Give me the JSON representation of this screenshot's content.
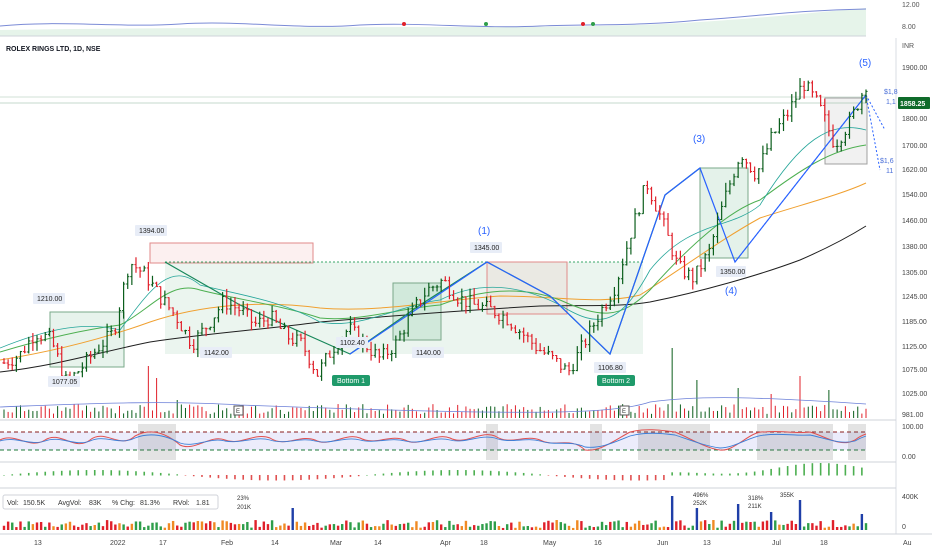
{
  "title": "ROLEX RINGS LTD, 1D, NSE",
  "currency": "INR",
  "colors": {
    "up": "#0b5e1c",
    "down": "#e0202a",
    "box_green": "#9ccfb0",
    "box_red": "#e8a0a0",
    "ma_black": "#1f1f1f",
    "ma_orange": "#f0a030",
    "ma_green": "#4caf50",
    "ma_teal": "#26a69a",
    "pattern_green": "#17875a",
    "pattern_blue": "#2962ff",
    "price_tag": "#0f6b2a"
  },
  "price_axis": {
    "ticks": [
      "1900.00",
      "1800.00",
      "1700.00",
      "1620.00",
      "1540.00",
      "1460.00",
      "1380.00",
      "1305.00",
      "1245.00",
      "1185.00",
      "1125.00",
      "1075.00",
      "1025.00",
      "981.00"
    ]
  },
  "top_strip": {
    "ticks": [
      "12.00",
      "8.00"
    ]
  },
  "stoch_axis": {
    "ticks": [
      "100.00",
      "0.00"
    ]
  },
  "volume_axis": {
    "ticks": [
      "400K",
      "0"
    ]
  },
  "x_axis": {
    "ticks": [
      "13",
      "2022",
      "17",
      "Feb",
      "14",
      "Mar",
      "14",
      "Apr",
      "18",
      "May",
      "16",
      "Jun",
      "13",
      "Jul",
      "18",
      "Au"
    ]
  },
  "price_tag": "1858.25",
  "partial_labels": [
    "$1,8",
    "1,1",
    "$1,6",
    "11"
  ],
  "annotations": {
    "price_labels": [
      "1210.00",
      "1077.05",
      "1394.00",
      "1142.00",
      "1102.40",
      "1140.00",
      "1345.00",
      "1106.80",
      "1350.00"
    ],
    "waves": [
      "(1)",
      "(3)",
      "(4)",
      "(5)"
    ],
    "badges": [
      "Bottom 1",
      "Bottom 2"
    ],
    "earnings": [
      "E",
      "E"
    ],
    "volume_spikes": [
      "23%",
      "201K",
      "496%",
      "252K",
      "318%",
      "211K",
      "355K"
    ]
  },
  "stats": {
    "vol_label": "Vol:",
    "vol": "150.5K",
    "avgvol_label": "AvgVol:",
    "avgvol": "83K",
    "chg_label": "% Chg:",
    "chg": "81.3%",
    "rvol_label": "RVol:",
    "rvol": "1.81"
  },
  "chart_data": {
    "type": "bar",
    "title": "ROLEX RINGS LTD, 1D, NSE",
    "x_labels": [
      "13",
      "2022",
      "17",
      "Feb",
      "14",
      "Mar",
      "14",
      "Apr",
      "18",
      "May",
      "16",
      "Jun",
      "13",
      "Jul",
      "18"
    ],
    "ylim": [
      981,
      1920
    ],
    "close_path": [
      1130,
      1150,
      1210,
      1190,
      1077,
      1120,
      1170,
      1210,
      1394,
      1360,
      1300,
      1250,
      1180,
      1230,
      1290,
      1270,
      1230,
      1250,
      1200,
      1180,
      1102,
      1170,
      1220,
      1180,
      1140,
      1180,
      1260,
      1320,
      1345,
      1300,
      1280,
      1270,
      1250,
      1210,
      1170,
      1140,
      1106,
      1180,
      1260,
      1330,
      1470,
      1600,
      1500,
      1380,
      1350,
      1420,
      1560,
      1680,
      1620,
      1720,
      1780,
      1860,
      1800,
      1700,
      1760,
      1858
    ],
    "key_levels": {
      "1210.00": 1210,
      "1077.05": 1077.05,
      "1394.00": 1394,
      "1142.00": 1142,
      "1102.40": 1102.4,
      "1140.00": 1140,
      "1345.00": 1345,
      "1106.80": 1106.8,
      "1350.00": 1350,
      "1858.25": 1858.25
    }
  }
}
